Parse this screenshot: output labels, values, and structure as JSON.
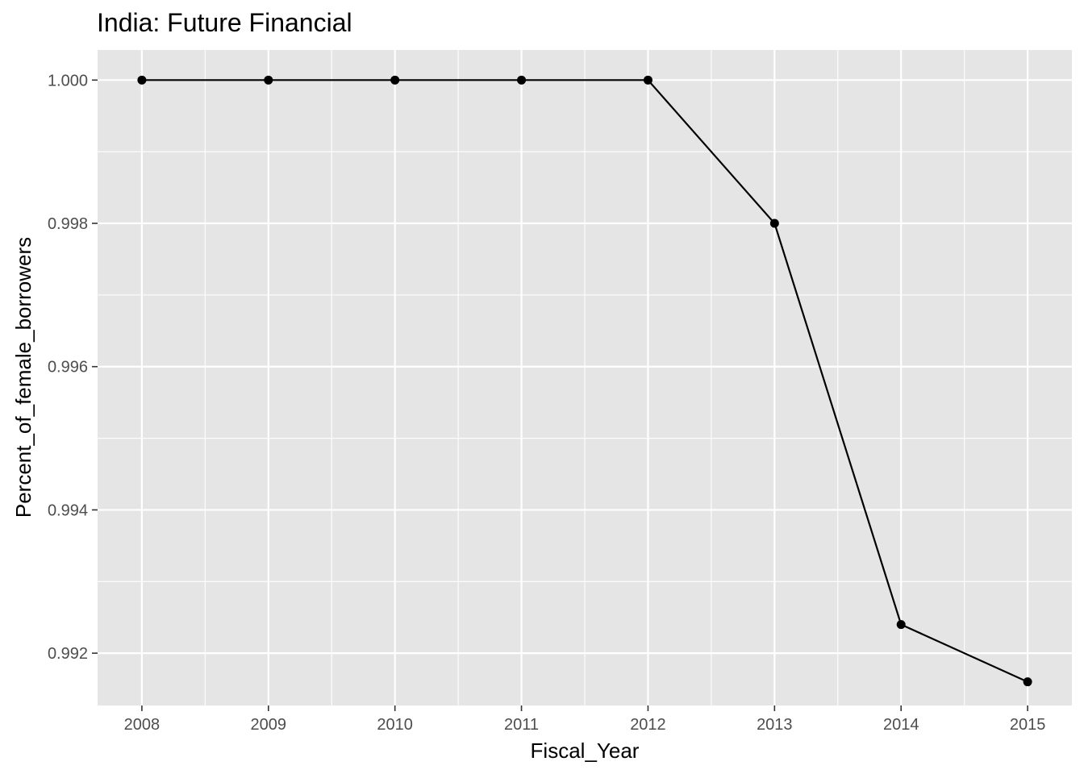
{
  "chart_data": {
    "type": "line",
    "title": "India:  Future Financial",
    "xlabel": "Fiscal_Year",
    "ylabel": "Percent_of_female_borrowers",
    "x": [
      2008,
      2009,
      2010,
      2011,
      2012,
      2013,
      2014,
      2015
    ],
    "series": [
      {
        "values": [
          1.0,
          1.0,
          1.0,
          1.0,
          1.0,
          0.998,
          0.9924,
          0.9916
        ]
      }
    ],
    "xlim": [
      2007.65,
      2015.35
    ],
    "ylim": [
      0.99127,
      1.00042
    ],
    "x_ticks": [
      "2008",
      "2009",
      "2010",
      "2011",
      "2012",
      "2013",
      "2014",
      "2015"
    ],
    "y_ticks": [
      {
        "value": 0.992,
        "label": "0.992"
      },
      {
        "value": 0.994,
        "label": "0.994"
      },
      {
        "value": 0.996,
        "label": "0.996"
      },
      {
        "value": 0.998,
        "label": "0.998"
      },
      {
        "value": 1.0,
        "label": "1.000"
      }
    ],
    "grid": true,
    "legend": "none",
    "colors": {
      "panel": "#e5e5e5",
      "grid": "#ffffff",
      "line": "#000000",
      "point": "#000000"
    }
  }
}
